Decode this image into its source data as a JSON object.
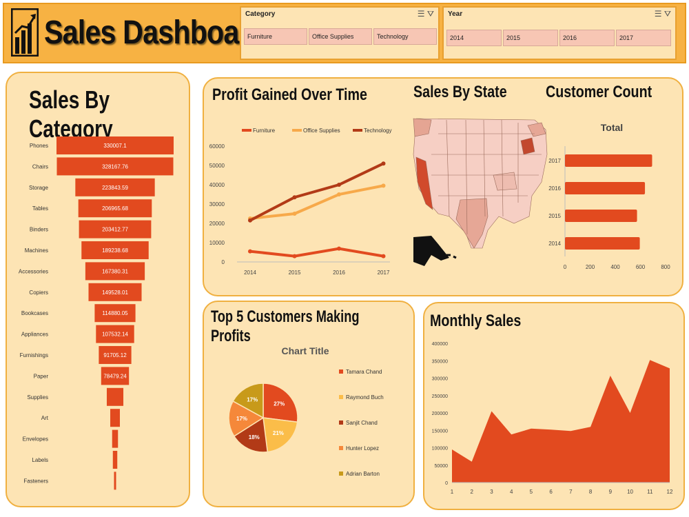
{
  "header": {
    "title": "Sales Dashboard"
  },
  "slicers": {
    "category": {
      "label": "Category",
      "options": [
        "Furniture",
        "Office Supplies",
        "Technology"
      ]
    },
    "year": {
      "label": "Year",
      "options": [
        "2014",
        "2015",
        "2016",
        "2017"
      ]
    }
  },
  "panels": {
    "sales_by_category": "Sales By Category",
    "profit_over_time": "Profit Gained Over Time",
    "sales_by_state": "Sales By State",
    "customer_count": "Customer Count",
    "top_customers": "Top 5 Customers Making Profits",
    "monthly_sales": "Monthly Sales"
  },
  "colors": {
    "accent": "#e24a1f",
    "orange": "#f7a94a",
    "dark": "#b23a17",
    "panel": "#fde4b4",
    "border": "#f0b040"
  },
  "chart_data": [
    {
      "id": "sales_by_category",
      "type": "bar",
      "orientation": "funnel",
      "categories": [
        "Phones",
        "Chairs",
        "Storage",
        "Tables",
        "Binders",
        "Machines",
        "Accessories",
        "Copiers",
        "Bookcases",
        "Appliances",
        "Furnishings",
        "Paper",
        "Supplies",
        "Art",
        "Envelopes",
        "Labels",
        "Fasteners"
      ],
      "values": [
        330007.1,
        328167.76,
        223843.59,
        206965.68,
        203412.77,
        189238.68,
        167380.31,
        149528.01,
        114880.05,
        107532.14,
        91705.12,
        78479.24,
        46673.54,
        27118.79,
        16476.4,
        12486.31,
        3024.28
      ],
      "labels": [
        "330007.1",
        "328167.76",
        "223843.59",
        "206965.68",
        "203412.77",
        "189238.68",
        "167380.31",
        "149528.01",
        "114880.05",
        "107532.14",
        "91705.12",
        "78479.24",
        "",
        "",
        "",
        "",
        ""
      ]
    },
    {
      "id": "profit_over_time",
      "type": "line",
      "x": [
        "2014",
        "2015",
        "2016",
        "2017"
      ],
      "series": [
        {
          "name": "Furniture",
          "values": [
            5500,
            3000,
            6900,
            3000
          ]
        },
        {
          "name": "Office Supplies",
          "values": [
            22500,
            25000,
            35000,
            39500
          ]
        },
        {
          "name": "Technology",
          "values": [
            21500,
            33500,
            40000,
            51000
          ]
        }
      ],
      "ylim": [
        0,
        60000
      ],
      "yticks": [
        "0",
        "10000",
        "20000",
        "30000",
        "40000",
        "50000",
        "60000"
      ]
    },
    {
      "id": "customer_count",
      "type": "bar",
      "orientation": "horizontal",
      "title": "Total",
      "categories": [
        "2017",
        "2016",
        "2015",
        "2014"
      ],
      "values": [
        693,
        636,
        573,
        595
      ],
      "xlim": [
        0,
        800
      ],
      "xticks": [
        "0",
        "200",
        "400",
        "600",
        "800"
      ]
    },
    {
      "id": "top_customers",
      "type": "pie",
      "title": "Chart Title",
      "categories": [
        "Tamara Chand",
        "Raymond Buch",
        "Sanjit Chand",
        "Hunter Lopez",
        "Adrian Barton"
      ],
      "values": [
        27,
        21,
        18,
        17,
        17
      ],
      "labels": [
        "27%",
        "21%",
        "18%",
        "17%",
        "17%"
      ]
    },
    {
      "id": "monthly_sales",
      "type": "area",
      "x": [
        "1",
        "2",
        "3",
        "4",
        "5",
        "6",
        "7",
        "8",
        "9",
        "10",
        "11",
        "12"
      ],
      "values": [
        95000,
        60000,
        205000,
        138000,
        155000,
        152000,
        148000,
        160000,
        307000,
        200000,
        352000,
        328000
      ],
      "ylim": [
        0,
        400000
      ],
      "yticks": [
        "0",
        "50000",
        "100000",
        "150000",
        "200000",
        "250000",
        "300000",
        "350000",
        "400000"
      ]
    }
  ]
}
